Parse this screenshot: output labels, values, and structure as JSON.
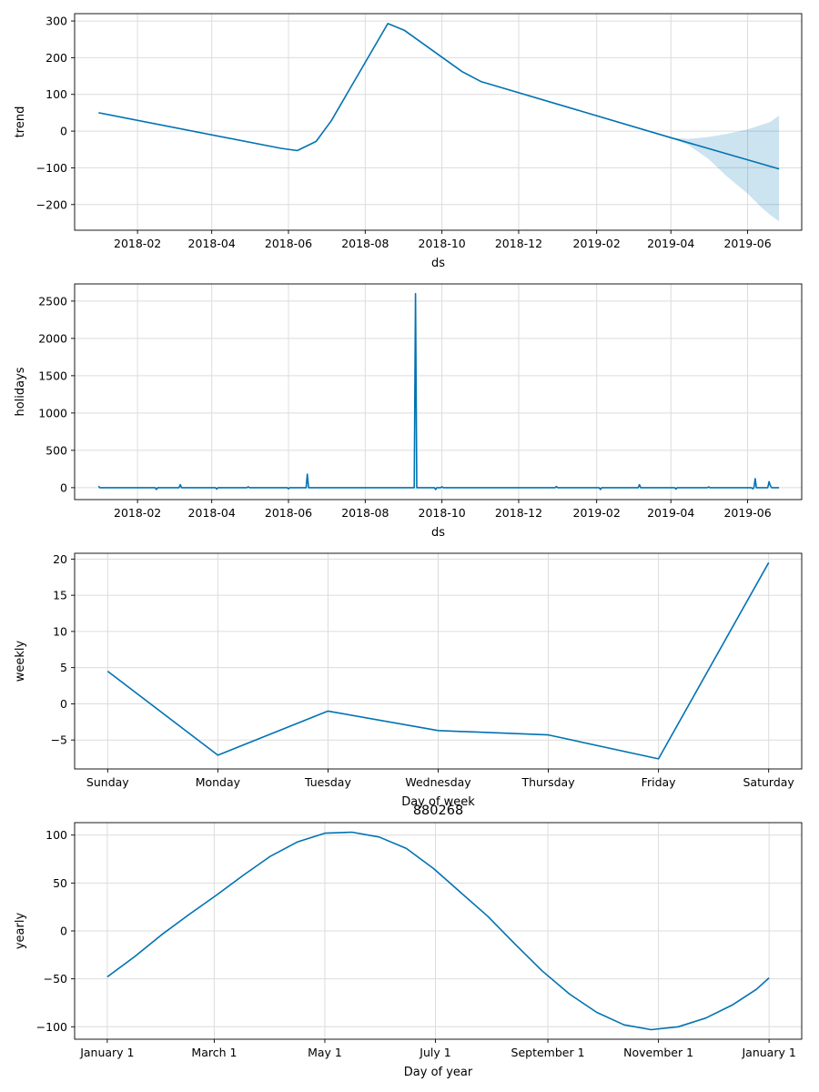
{
  "chart_data": [
    {
      "type": "line",
      "id": "trend",
      "xlabel": "ds",
      "ylabel": "trend",
      "xaxis": "time",
      "xlim": [
        "2017-12-13",
        "2019-07-14"
      ],
      "ylim": [
        -270,
        320
      ],
      "xticks": [
        {
          "value": "2018-02-01",
          "label": "2018-02"
        },
        {
          "value": "2018-04-01",
          "label": "2018-04"
        },
        {
          "value": "2018-06-01",
          "label": "2018-06"
        },
        {
          "value": "2018-08-01",
          "label": "2018-08"
        },
        {
          "value": "2018-10-01",
          "label": "2018-10"
        },
        {
          "value": "2018-12-01",
          "label": "2018-12"
        },
        {
          "value": "2019-02-01",
          "label": "2019-02"
        },
        {
          "value": "2019-04-01",
          "label": "2019-04"
        },
        {
          "value": "2019-06-01",
          "label": "2019-06"
        }
      ],
      "yticks": [
        {
          "value": 300,
          "label": "300"
        },
        {
          "value": 200,
          "label": "200"
        },
        {
          "value": 100,
          "label": "100"
        },
        {
          "value": 0,
          "label": "0"
        },
        {
          "value": -100,
          "label": "−100"
        },
        {
          "value": -200,
          "label": "−200"
        }
      ],
      "series": [
        {
          "name": "trend",
          "x": [
            "2018-01-01",
            "2018-05-26",
            "2018-06-08",
            "2018-06-23",
            "2018-07-05",
            "2018-08-19",
            "2018-09-01",
            "2018-10-17",
            "2018-11-01",
            "2019-04-01",
            "2019-06-26"
          ],
          "y": [
            50,
            -47,
            -53,
            -28,
            28,
            293,
            275,
            162,
            135,
            -18,
            -103
          ]
        }
      ],
      "band": {
        "name": "trend uncertainty",
        "x": [
          "2019-04-01",
          "2019-04-15",
          "2019-05-01",
          "2019-05-15",
          "2019-06-01",
          "2019-06-12",
          "2019-06-19",
          "2019-06-26"
        ],
        "upper": [
          -18,
          -21,
          -16,
          -8,
          5,
          17,
          25,
          42
        ],
        "lower": [
          -18,
          -38,
          -76,
          -122,
          -170,
          -208,
          -228,
          -246
        ]
      }
    },
    {
      "type": "line",
      "id": "holidays",
      "xlabel": "ds",
      "ylabel": "holidays",
      "xaxis": "time",
      "xlim": [
        "2017-12-13",
        "2019-07-14"
      ],
      "ylim": [
        -160,
        2730
      ],
      "xticks": [
        {
          "value": "2018-02-01",
          "label": "2018-02"
        },
        {
          "value": "2018-04-01",
          "label": "2018-04"
        },
        {
          "value": "2018-06-01",
          "label": "2018-06"
        },
        {
          "value": "2018-08-01",
          "label": "2018-08"
        },
        {
          "value": "2018-10-01",
          "label": "2018-10"
        },
        {
          "value": "2018-12-01",
          "label": "2018-12"
        },
        {
          "value": "2019-02-01",
          "label": "2019-02"
        },
        {
          "value": "2019-04-01",
          "label": "2019-04"
        },
        {
          "value": "2019-06-01",
          "label": "2019-06"
        }
      ],
      "yticks": [
        {
          "value": 2500,
          "label": "2500"
        },
        {
          "value": 2000,
          "label": "2000"
        },
        {
          "value": 1500,
          "label": "1500"
        },
        {
          "value": 1000,
          "label": "1000"
        },
        {
          "value": 500,
          "label": "500"
        },
        {
          "value": 0,
          "label": "0"
        }
      ],
      "series": [
        {
          "name": "holidays",
          "x": [
            "2018-01-01",
            "2018-01-02",
            "2018-02-15",
            "2018-02-16",
            "2018-02-17",
            "2018-03-06",
            "2018-03-07",
            "2018-03-08",
            "2018-04-04",
            "2018-04-05",
            "2018-04-06",
            "2018-04-29",
            "2018-04-30",
            "2018-05-01",
            "2018-05-31",
            "2018-06-01",
            "2018-06-02",
            "2018-06-15",
            "2018-06-16",
            "2018-06-17",
            "2018-09-09",
            "2018-09-10",
            "2018-09-11",
            "2018-09-25",
            "2018-09-26",
            "2018-09-27",
            "2018-09-30",
            "2018-10-01",
            "2018-10-02",
            "2018-12-30",
            "2018-12-31",
            "2019-01-01",
            "2019-02-03",
            "2019-02-04",
            "2019-02-05",
            "2019-03-06",
            "2019-03-07",
            "2019-03-08",
            "2019-04-04",
            "2019-04-05",
            "2019-04-06",
            "2019-04-30",
            "2019-05-01",
            "2019-05-02",
            "2019-06-04",
            "2019-06-05",
            "2019-06-06",
            "2019-06-07",
            "2019-06-08",
            "2019-06-09",
            "2019-06-17",
            "2019-06-18",
            "2019-06-19",
            "2019-06-20",
            "2019-06-26"
          ],
          "y": [
            20,
            0,
            0,
            -25,
            0,
            0,
            40,
            0,
            0,
            -20,
            0,
            0,
            12,
            0,
            0,
            -15,
            0,
            0,
            180,
            0,
            0,
            2600,
            0,
            0,
            -25,
            0,
            0,
            12,
            0,
            0,
            15,
            0,
            0,
            -25,
            0,
            0,
            40,
            0,
            0,
            -20,
            0,
            0,
            10,
            0,
            0,
            -15,
            0,
            120,
            0,
            0,
            0,
            80,
            30,
            0,
            0
          ]
        }
      ]
    },
    {
      "type": "line",
      "id": "weekly",
      "xlabel": "Day of week",
      "ylabel": "weekly",
      "xaxis": "category",
      "xlim": [
        -0.3,
        6.3
      ],
      "ylim": [
        -9.0,
        20.8
      ],
      "categories": [
        "Sunday",
        "Monday",
        "Tuesday",
        "Wednesday",
        "Thursday",
        "Friday",
        "Saturday"
      ],
      "yticks": [
        {
          "value": 20,
          "label": "20"
        },
        {
          "value": 15,
          "label": "15"
        },
        {
          "value": 10,
          "label": "10"
        },
        {
          "value": 5,
          "label": "5"
        },
        {
          "value": 0,
          "label": "0"
        },
        {
          "value": -5,
          "label": "−5"
        }
      ],
      "series": [
        {
          "name": "weekly",
          "values": [
            4.5,
            -7.1,
            -1.0,
            -3.7,
            -4.3,
            -7.6,
            19.5
          ]
        }
      ]
    },
    {
      "type": "line",
      "id": "yearly",
      "title": "880268",
      "xlabel": "Day of year",
      "ylabel": "yearly",
      "xaxis": "dayofyear",
      "xlim": [
        -18,
        383
      ],
      "ylim": [
        -113,
        113
      ],
      "xticks": [
        {
          "value": 0,
          "label": "January 1"
        },
        {
          "value": 59,
          "label": "March 1"
        },
        {
          "value": 120,
          "label": "May 1"
        },
        {
          "value": 181,
          "label": "July 1"
        },
        {
          "value": 243,
          "label": "September 1"
        },
        {
          "value": 304,
          "label": "November 1"
        },
        {
          "value": 365,
          "label": "January 1"
        }
      ],
      "yticks": [
        {
          "value": 100,
          "label": "100"
        },
        {
          "value": 50,
          "label": "50"
        },
        {
          "value": 0,
          "label": "0"
        },
        {
          "value": -50,
          "label": "−50"
        },
        {
          "value": -100,
          "label": "−100"
        }
      ],
      "series": [
        {
          "name": "yearly",
          "x": [
            0,
            15,
            30,
            45,
            60,
            75,
            90,
            105,
            120,
            135,
            150,
            165,
            180,
            195,
            210,
            225,
            240,
            255,
            270,
            285,
            300,
            315,
            330,
            345,
            358,
            365
          ],
          "y": [
            -48,
            -27,
            -4,
            17,
            37,
            58,
            78,
            93,
            102,
            103,
            98,
            86,
            65,
            40,
            15,
            -14,
            -42,
            -66,
            -85,
            -98,
            -103,
            -100,
            -91,
            -77,
            -61,
            -49
          ]
        }
      ]
    }
  ],
  "colors": {
    "line": "#0072b2",
    "band": "#0072b2",
    "grid": "#dcdcdc",
    "axes": "#000000"
  }
}
